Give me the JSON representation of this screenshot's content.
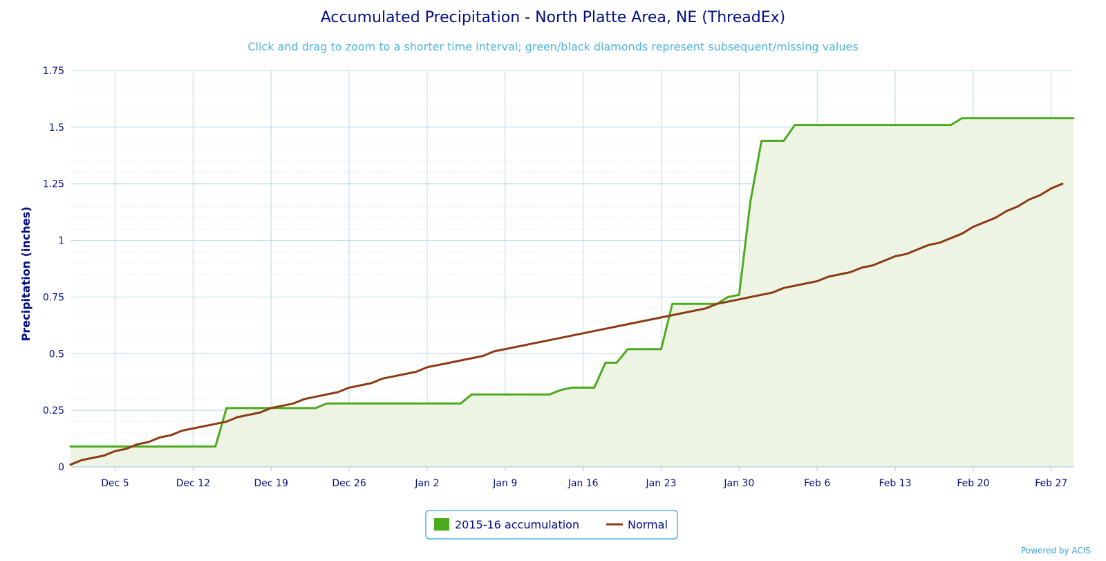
{
  "credit": "Powered by ACIS",
  "chart_data": {
    "type": "area",
    "title": "Accumulated Precipitation - North Platte Area, NE (ThreadEx)",
    "subtitle": "Click and drag to zoom to a shorter time interval; green/black diamonds represent subsequent/missing values",
    "ylabel": "Precipitation (inches)",
    "xlabel": "",
    "ylim": [
      0,
      1.75
    ],
    "xlim": [
      "2015-12-01",
      "2016-02-29"
    ],
    "yticks": [
      {
        "value": 0,
        "label": "0"
      },
      {
        "value": 0.25,
        "label": "0.25"
      },
      {
        "value": 0.5,
        "label": "0.5"
      },
      {
        "value": 0.75,
        "label": "0.75"
      },
      {
        "value": 1,
        "label": "1"
      },
      {
        "value": 1.25,
        "label": "1.25"
      },
      {
        "value": 1.5,
        "label": "1.5"
      },
      {
        "value": 1.75,
        "label": "1.75"
      }
    ],
    "xticks": [
      {
        "date": "2015-12-05",
        "label": "Dec 5"
      },
      {
        "date": "2015-12-12",
        "label": "Dec 12"
      },
      {
        "date": "2015-12-19",
        "label": "Dec 19"
      },
      {
        "date": "2015-12-26",
        "label": "Dec 26"
      },
      {
        "date": "2016-01-02",
        "label": "Jan 2"
      },
      {
        "date": "2016-01-09",
        "label": "Jan 9"
      },
      {
        "date": "2016-01-16",
        "label": "Jan 16"
      },
      {
        "date": "2016-01-23",
        "label": "Jan 23"
      },
      {
        "date": "2016-01-30",
        "label": "Jan 30"
      },
      {
        "date": "2016-02-06",
        "label": "Feb 6"
      },
      {
        "date": "2016-02-13",
        "label": "Feb 13"
      },
      {
        "date": "2016-02-20",
        "label": "Feb 20"
      },
      {
        "date": "2016-02-27",
        "label": "Feb 27"
      }
    ],
    "grid": true,
    "legend_position": "bottom-center",
    "series": [
      {
        "name": "2015-16 accumulation",
        "color": "#4caa1e",
        "fill": "#edf4e4",
        "style": "step-area",
        "points": [
          [
            "2015-12-01",
            0.09
          ],
          [
            "2015-12-14",
            0.09
          ],
          [
            "2015-12-15",
            0.26
          ],
          [
            "2015-12-23",
            0.26
          ],
          [
            "2015-12-24",
            0.28
          ],
          [
            "2016-01-05",
            0.28
          ],
          [
            "2016-01-06",
            0.32
          ],
          [
            "2016-01-13",
            0.32
          ],
          [
            "2016-01-14",
            0.34
          ],
          [
            "2016-01-15",
            0.35
          ],
          [
            "2016-01-17",
            0.35
          ],
          [
            "2016-01-18",
            0.46
          ],
          [
            "2016-01-19",
            0.46
          ],
          [
            "2016-01-20",
            0.52
          ],
          [
            "2016-01-23",
            0.52
          ],
          [
            "2016-01-24",
            0.72
          ],
          [
            "2016-01-28",
            0.72
          ],
          [
            "2016-01-29",
            0.75
          ],
          [
            "2016-01-30",
            0.76
          ],
          [
            "2016-01-31",
            1.17
          ],
          [
            "2016-02-01",
            1.44
          ],
          [
            "2016-02-03",
            1.44
          ],
          [
            "2016-02-04",
            1.51
          ],
          [
            "2016-02-18",
            1.51
          ],
          [
            "2016-02-19",
            1.54
          ],
          [
            "2016-02-29",
            1.54
          ]
        ]
      },
      {
        "name": "Normal",
        "color": "#8b3a12",
        "style": "line",
        "points": [
          [
            "2015-12-01",
            0.01
          ],
          [
            "2015-12-02",
            0.03
          ],
          [
            "2015-12-03",
            0.04
          ],
          [
            "2015-12-04",
            0.05
          ],
          [
            "2015-12-05",
            0.07
          ],
          [
            "2015-12-06",
            0.08
          ],
          [
            "2015-12-07",
            0.1
          ],
          [
            "2015-12-08",
            0.11
          ],
          [
            "2015-12-09",
            0.13
          ],
          [
            "2015-12-10",
            0.14
          ],
          [
            "2015-12-11",
            0.16
          ],
          [
            "2015-12-14",
            0.19
          ],
          [
            "2015-12-15",
            0.2
          ],
          [
            "2015-12-16",
            0.22
          ],
          [
            "2015-12-18",
            0.24
          ],
          [
            "2015-12-19",
            0.26
          ],
          [
            "2015-12-21",
            0.28
          ],
          [
            "2015-12-22",
            0.3
          ],
          [
            "2015-12-25",
            0.33
          ],
          [
            "2015-12-26",
            0.35
          ],
          [
            "2015-12-28",
            0.37
          ],
          [
            "2015-12-29",
            0.39
          ],
          [
            "2016-01-01",
            0.42
          ],
          [
            "2016-01-02",
            0.44
          ],
          [
            "2016-01-07",
            0.49
          ],
          [
            "2016-01-08",
            0.51
          ],
          [
            "2016-01-24",
            0.67
          ],
          [
            "2016-01-27",
            0.7
          ],
          [
            "2016-01-28",
            0.72
          ],
          [
            "2016-02-02",
            0.77
          ],
          [
            "2016-02-03",
            0.79
          ],
          [
            "2016-02-06",
            0.82
          ],
          [
            "2016-02-07",
            0.84
          ],
          [
            "2016-02-09",
            0.86
          ],
          [
            "2016-02-10",
            0.88
          ],
          [
            "2016-02-11",
            0.89
          ],
          [
            "2016-02-13",
            0.93
          ],
          [
            "2016-02-14",
            0.94
          ],
          [
            "2016-02-16",
            0.98
          ],
          [
            "2016-02-17",
            0.99
          ],
          [
            "2016-02-19",
            1.03
          ],
          [
            "2016-02-20",
            1.06
          ],
          [
            "2016-02-22",
            1.1
          ],
          [
            "2016-02-23",
            1.13
          ],
          [
            "2016-02-24",
            1.15
          ],
          [
            "2016-02-25",
            1.18
          ],
          [
            "2016-02-26",
            1.2
          ],
          [
            "2016-02-27",
            1.23
          ],
          [
            "2016-02-28",
            1.25
          ]
        ]
      }
    ]
  }
}
